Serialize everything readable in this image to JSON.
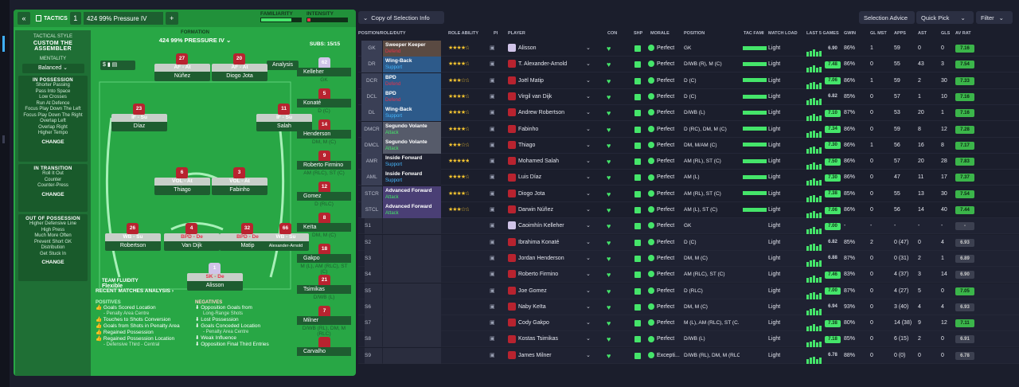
{
  "tactics": {
    "title": "TACTICS",
    "slot": "1",
    "name": "424 99% Pressure IV",
    "add": "+",
    "back": "«",
    "familiarity_label": "FAMILIARITY",
    "intensity_label": "INTENSITY",
    "formation_label": "FORMATION",
    "formation_name": "424 99% PRESSURE IV",
    "subs_label": "SUBS:",
    "subs_count": "15/15",
    "analysis_btn": "Analysis",
    "team_fluidity_label": "TEAM FLUIDITY",
    "team_fluidity_value": "Flexible"
  },
  "left": {
    "style_label": "TACTICAL STYLE",
    "style_value_1": "CUSTOM THE",
    "style_value_2": "ASSEMBLER",
    "mentality_label": "MENTALITY",
    "mentality_value": "Balanced",
    "in_possession_label": "IN POSSESSION",
    "in_possession_items": [
      "Shorter Passing",
      "Pass Into Space",
      "Low Crosses",
      "Run At Defence",
      "Focus Play Down The Left",
      "Focus Play Down The Right",
      "Overlap Left",
      "Overlap Right",
      "Higher Tempo"
    ],
    "in_transition_label": "IN TRANSITION",
    "in_transition_items": [
      "Roll It Out",
      "Counter",
      "Counter-Press"
    ],
    "out_possession_label": "OUT OF POSSESSION",
    "out_possession_items": [
      "Higher Defensive Line",
      "High Press",
      "Much More Often",
      "Prevent Short GK",
      "Distribution",
      "Get Stuck In"
    ],
    "change_label": "CHANGE"
  },
  "pitch": {
    "players": [
      {
        "num": "27",
        "role": "AF - At",
        "name": "Núñez"
      },
      {
        "num": "20",
        "role": "AF - At",
        "name": "Diogo Jota"
      },
      {
        "num": "23",
        "role": "IF - Su",
        "name": "Díaz"
      },
      {
        "num": "11",
        "role": "IF - Su",
        "name": "Salah"
      },
      {
        "num": "6",
        "role": "VOL - At",
        "name": "Thiago"
      },
      {
        "num": "3",
        "role": "VOL - At",
        "name": "Fabinho"
      },
      {
        "num": "26",
        "role": "WB - Su",
        "name": "Robertson"
      },
      {
        "num": "4",
        "role": "BPD - De",
        "name": "Van Dijk"
      },
      {
        "num": "32",
        "role": "BPD - De",
        "name": "Matip"
      },
      {
        "num": "66",
        "role": "WB - Su",
        "name": "Alexander-Arnold"
      },
      {
        "num": "1",
        "role": "SK - De",
        "name": "Alisson"
      }
    ]
  },
  "subs": [
    {
      "num": "62",
      "name": "Kelleher",
      "pos": "GK"
    },
    {
      "num": "5",
      "name": "Konaté",
      "pos": "D (C)"
    },
    {
      "num": "14",
      "name": "Henderson",
      "pos": "DM, M (C)"
    },
    {
      "num": "9",
      "name": "Roberto Firmino",
      "pos": "AM (RLC), ST (C)"
    },
    {
      "num": "12",
      "name": "Gomez",
      "pos": "D (RLC)"
    },
    {
      "num": "8",
      "name": "Keïta",
      "pos": "DM, M (C)"
    },
    {
      "num": "18",
      "name": "Gakpo",
      "pos": "M (L), AM (RLC), ST (C)"
    },
    {
      "num": "21",
      "name": "Tsimikas",
      "pos": "D/WB (L)"
    },
    {
      "num": "7",
      "name": "Milner",
      "pos": "D/WB (RL), DM, M (RLC)"
    },
    {
      "num": "",
      "name": "Carvalho",
      "pos": ""
    }
  ],
  "analysis": {
    "title": "RECENT MATCHES ANALYSIS",
    "positives_label": "POSITIVES",
    "negatives_label": "NEGATIVES",
    "positives": [
      "Goals Scored Location",
      "- Penalty Area Centre",
      "Touches to Shots Conversion",
      "Goals from Shots in Penalty Area",
      "Regained Possession",
      "Regained Possession Location",
      "- Defensive Third - Central"
    ],
    "negatives": [
      "Opposition Goals from",
      "Long-Range Shots",
      "Lost Possession",
      "Goals Conceded Location",
      "- Penalty Area Centre",
      "Weak Influence",
      "Opposition Final Third Entries"
    ]
  },
  "toolbar": {
    "copy": "Copy of Selection Info",
    "selection_advice": "Selection Advice",
    "quick_pick": "Quick Pick",
    "filter": "Filter"
  },
  "table": {
    "headers": [
      "POSITION/ROLE/DUTY",
      "ROLE ABILITY",
      "PI",
      "PLAYER",
      "CON",
      "SHP",
      "MORALE",
      "POSITION",
      "TAC FAMI",
      "MATCH LOAD",
      "LAST 5 GAMES",
      "GWIN",
      "GL MST",
      "APPS",
      "AST",
      "GLS",
      "AV RAT"
    ],
    "rows": [
      {
        "slot": "GK",
        "role": "Sweeper Keeper",
        "duty": "Defend",
        "stars": "★★★★☆",
        "player": "Alisson",
        "morale": "Perfect",
        "pos": "GK",
        "load": "Light",
        "l5": "6.90",
        "gwin": "86%",
        "glm": "1",
        "apps": "59",
        "ast": "0",
        "gls": "0",
        "av": "7.16"
      },
      {
        "slot": "DR",
        "role": "Wing-Back",
        "duty": "Support",
        "stars": "★★★★☆",
        "player": "T. Alexander-Arnold",
        "morale": "Perfect",
        "pos": "D/WB (R), M (C)",
        "load": "Light",
        "l5": "7.48",
        "gwin": "86%",
        "glm": "0",
        "apps": "55",
        "ast": "43",
        "gls": "3",
        "av": "7.54"
      },
      {
        "slot": "DCR",
        "role": "BPD",
        "duty": "Defend",
        "stars": "★★★☆☆",
        "player": "Joël Matip",
        "morale": "Perfect",
        "pos": "D (C)",
        "load": "Light",
        "l5": "7.06",
        "gwin": "86%",
        "glm": "1",
        "apps": "59",
        "ast": "2",
        "gls": "30",
        "av": "7.33"
      },
      {
        "slot": "DCL",
        "role": "BPD",
        "duty": "Defend",
        "stars": "★★★★☆",
        "player": "Virgil van Dijk",
        "morale": "Perfect",
        "pos": "D (C)",
        "load": "Light",
        "l5": "6.82",
        "gwin": "85%",
        "glm": "0",
        "apps": "57",
        "ast": "1",
        "gls": "10",
        "av": "7.16"
      },
      {
        "slot": "DL",
        "role": "Wing-Back",
        "duty": "Support",
        "stars": "★★★★☆",
        "player": "Andrew Robertson",
        "morale": "Perfect",
        "pos": "D/WB (L)",
        "load": "Light",
        "l5": "7.10",
        "gwin": "87%",
        "glm": "0",
        "apps": "53",
        "ast": "20",
        "gls": "1",
        "av": "7.16"
      },
      {
        "slot": "DMCR",
        "role": "Segundo Volante",
        "duty": "Attack",
        "stars": "★★★★☆",
        "player": "Fabinho",
        "morale": "Perfect",
        "pos": "D (RC), DM, M (C)",
        "load": "Light",
        "l5": "7.34",
        "gwin": "86%",
        "glm": "0",
        "apps": "59",
        "ast": "8",
        "gls": "12",
        "av": "7.28"
      },
      {
        "slot": "DMCL",
        "role": "Segundo Volante",
        "duty": "Attack",
        "stars": "★★★☆☆",
        "player": "Thiago",
        "morale": "Perfect",
        "pos": "DM, M/AM (C)",
        "load": "Light",
        "l5": "7.30",
        "gwin": "86%",
        "glm": "1",
        "apps": "56",
        "ast": "16",
        "gls": "8",
        "av": "7.17"
      },
      {
        "slot": "AMR",
        "role": "Inside Forward",
        "duty": "Support",
        "stars": "★★★★★",
        "player": "Mohamed Salah",
        "morale": "Perfect",
        "pos": "AM (RL), ST (C)",
        "load": "Light",
        "l5": "7.50",
        "gwin": "86%",
        "glm": "0",
        "apps": "57",
        "ast": "20",
        "gls": "28",
        "av": "7.83"
      },
      {
        "slot": "AML",
        "role": "Inside Forward",
        "duty": "Support",
        "stars": "★★★★☆",
        "player": "Luis Díaz",
        "morale": "Perfect",
        "pos": "AM (L)",
        "load": "Light",
        "l5": "7.30",
        "gwin": "86%",
        "glm": "0",
        "apps": "47",
        "ast": "11",
        "gls": "17",
        "av": "7.37"
      },
      {
        "slot": "STCR",
        "role": "Advanced Forward",
        "duty": "Attack",
        "stars": "★★★★☆",
        "player": "Diogo Jota",
        "morale": "Perfect",
        "pos": "AM (RL), ST (C)",
        "load": "Light",
        "l5": "7.38",
        "gwin": "85%",
        "glm": "0",
        "apps": "55",
        "ast": "13",
        "gls": "30",
        "av": "7.54"
      },
      {
        "slot": "STCL",
        "role": "Advanced Forward",
        "duty": "Attack",
        "stars": "★★★☆☆",
        "player": "Darwin Núñez",
        "morale": "Perfect",
        "pos": "AM (L), ST (C)",
        "load": "Light",
        "l5": "7.06",
        "gwin": "86%",
        "glm": "0",
        "apps": "56",
        "ast": "14",
        "gls": "40",
        "av": "7.44"
      },
      {
        "slot": "S1",
        "role": "",
        "duty": "",
        "stars": "",
        "player": "Caoimhín Kelleher",
        "morale": "Perfect",
        "pos": "GK",
        "load": "Light",
        "l5": "7.00",
        "gwin": "-",
        "glm": "-",
        "apps": "-",
        "ast": "-",
        "gls": "-",
        "av": "-"
      },
      {
        "slot": "S2",
        "role": "",
        "duty": "",
        "stars": "",
        "player": "Ibrahima Konaté",
        "morale": "Perfect",
        "pos": "D (C)",
        "load": "Light",
        "l5": "6.82",
        "gwin": "85%",
        "glm": "2",
        "apps": "0 (47)",
        "ast": "0",
        "gls": "4",
        "av": "6.93"
      },
      {
        "slot": "S3",
        "role": "",
        "duty": "",
        "stars": "",
        "player": "Jordan Henderson",
        "morale": "Perfect",
        "pos": "DM, M (C)",
        "load": "Light",
        "l5": "6.88",
        "gwin": "87%",
        "glm": "0",
        "apps": "0 (31)",
        "ast": "2",
        "gls": "1",
        "av": "6.89"
      },
      {
        "slot": "S4",
        "role": "",
        "duty": "",
        "stars": "",
        "player": "Roberto Firmino",
        "morale": "Perfect",
        "pos": "AM (RLC), ST (C)",
        "load": "Light",
        "l5": "7.46",
        "gwin": "83%",
        "glm": "0",
        "apps": "4 (37)",
        "ast": "3",
        "gls": "14",
        "av": "6.90"
      },
      {
        "slot": "S5",
        "role": "",
        "duty": "",
        "stars": "",
        "player": "Joe Gomez",
        "morale": "Perfect",
        "pos": "D (RLC)",
        "load": "Light",
        "l5": "7.00",
        "gwin": "87%",
        "glm": "0",
        "apps": "4 (27)",
        "ast": "5",
        "gls": "0",
        "av": "7.05"
      },
      {
        "slot": "S6",
        "role": "",
        "duty": "",
        "stars": "",
        "player": "Naby Keïta",
        "morale": "Perfect",
        "pos": "DM, M (C)",
        "load": "Light",
        "l5": "6.94",
        "gwin": "93%",
        "glm": "0",
        "apps": "3 (40)",
        "ast": "4",
        "gls": "4",
        "av": "6.93"
      },
      {
        "slot": "S7",
        "role": "",
        "duty": "",
        "stars": "",
        "player": "Cody Gakpo",
        "morale": "Perfect",
        "pos": "M (L), AM (RLC), ST (C...",
        "load": "Light",
        "l5": "7.38",
        "gwin": "80%",
        "glm": "0",
        "apps": "14 (38)",
        "ast": "9",
        "gls": "12",
        "av": "7.11"
      },
      {
        "slot": "S8",
        "role": "",
        "duty": "",
        "stars": "",
        "player": "Kostas Tsimikas",
        "morale": "Perfect",
        "pos": "D/WB (L)",
        "load": "Light",
        "l5": "7.18",
        "gwin": "85%",
        "glm": "0",
        "apps": "6 (15)",
        "ast": "2",
        "gls": "0",
        "av": "6.91"
      },
      {
        "slot": "S9",
        "role": "",
        "duty": "",
        "stars": "",
        "player": "James Milner",
        "morale": "Excepti...",
        "pos": "D/WB (RL), DM, M (RLC)",
        "load": "Light",
        "l5": "6.78",
        "gwin": "88%",
        "glm": "0",
        "apps": "0 (0)",
        "ast": "0",
        "gls": "0",
        "av": "6.78"
      }
    ]
  },
  "colors": {
    "panel_green": "#28a745",
    "bg_dark": "#1b1e2c",
    "defend": "#e8324a",
    "support": "#46b8ff",
    "attack": "#45e56a",
    "rating_green": "#45e56a"
  }
}
